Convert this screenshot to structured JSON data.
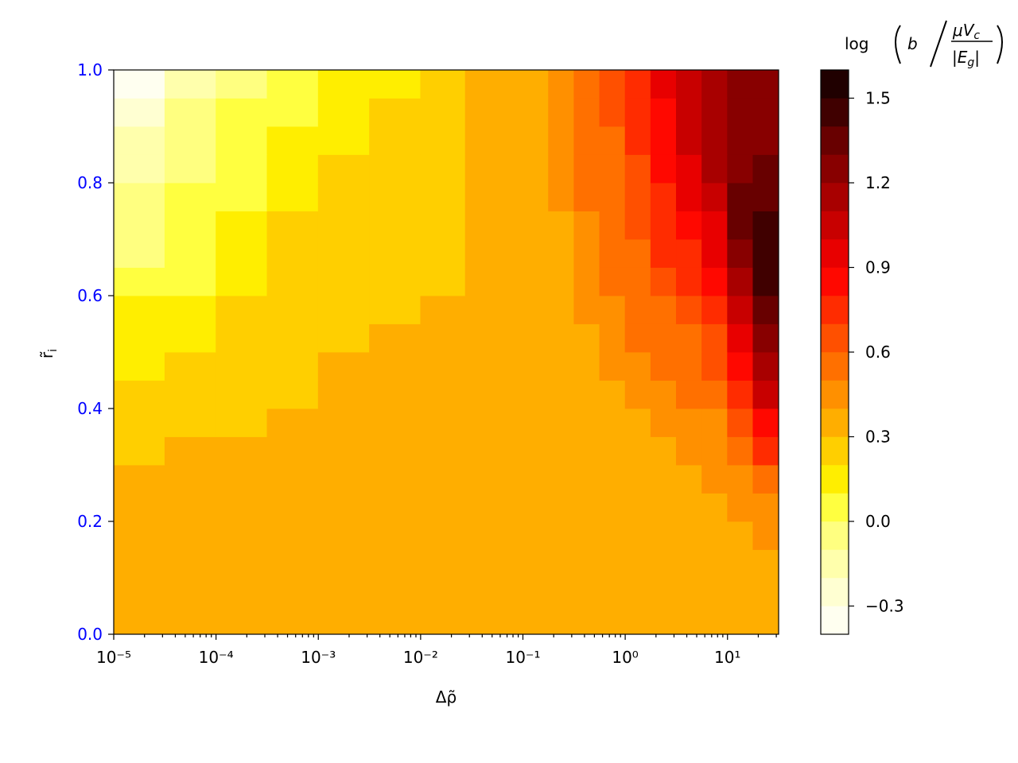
{
  "chart_data": {
    "type": "contourf",
    "xlabel": "Δρ̃",
    "ylabel": "r̃",
    "ylabel_sub": "i",
    "xscale": "log",
    "xlim": [
      1e-05,
      31.6
    ],
    "xticks": [
      {
        "value": 1e-05,
        "label": "10⁻⁵"
      },
      {
        "value": 0.0001,
        "label": "10⁻⁴"
      },
      {
        "value": 0.001,
        "label": "10⁻³"
      },
      {
        "value": 0.01,
        "label": "10⁻²"
      },
      {
        "value": 0.1,
        "label": "10⁻¹"
      },
      {
        "value": 1,
        "label": "10⁰"
      },
      {
        "value": 10,
        "label": "10¹"
      }
    ],
    "xminorticks": [
      2e-05,
      3e-05,
      4e-05,
      5e-05,
      6e-05,
      7e-05,
      8e-05,
      9e-05,
      0.0002,
      0.0003,
      0.0004,
      0.0005,
      0.0006,
      0.0007,
      0.0008,
      0.0009,
      0.002,
      0.003,
      0.004,
      0.005,
      0.006,
      0.007,
      0.008,
      0.009,
      0.02,
      0.03,
      0.04,
      0.05,
      0.06,
      0.07,
      0.08,
      0.09,
      0.2,
      0.3,
      0.4,
      0.5,
      0.6,
      0.7,
      0.8,
      0.9,
      2,
      3,
      4,
      5,
      6,
      7,
      8,
      9,
      20,
      30
    ],
    "ylim": [
      0,
      1
    ],
    "yticks": [
      {
        "value": 0,
        "label": "0.0"
      },
      0.2,
      0.4,
      0.6,
      0.8,
      {
        "value": 1,
        "label": "1.0"
      }
    ],
    "ytick_color": "#0000ff",
    "x": [
      1.778e-05,
      5.623e-05,
      0.0001778,
      0.0005623,
      0.001778,
      0.005623,
      0.01778,
      0.04217,
      0.07499,
      0.1334,
      0.2371,
      0.4217,
      0.7499,
      1.334,
      2.371,
      4.217,
      7.499,
      13.34,
      23.71
    ],
    "y": [
      0.025,
      0.075,
      0.125,
      0.175,
      0.225,
      0.275,
      0.325,
      0.375,
      0.425,
      0.475,
      0.525,
      0.575,
      0.625,
      0.675,
      0.725,
      0.775,
      0.825,
      0.875,
      0.925,
      0.975
    ],
    "z": [
      [
        0.35,
        0.35,
        0.35,
        0.35,
        0.35,
        0.35,
        0.35,
        0.35,
        0.35,
        0.35,
        0.35,
        0.35,
        0.35,
        0.35,
        0.35,
        0.35,
        0.35,
        0.35,
        0.35
      ],
      [
        0.35,
        0.35,
        0.35,
        0.35,
        0.35,
        0.35,
        0.35,
        0.35,
        0.35,
        0.35,
        0.35,
        0.35,
        0.35,
        0.35,
        0.35,
        0.35,
        0.35,
        0.35,
        0.35
      ],
      [
        0.35,
        0.35,
        0.35,
        0.35,
        0.35,
        0.35,
        0.35,
        0.35,
        0.35,
        0.35,
        0.35,
        0.35,
        0.35,
        0.35,
        0.35,
        0.35,
        0.35,
        0.35,
        0.35
      ],
      [
        0.35,
        0.35,
        0.35,
        0.35,
        0.35,
        0.35,
        0.35,
        0.35,
        0.35,
        0.35,
        0.35,
        0.35,
        0.35,
        0.35,
        0.35,
        0.35,
        0.35,
        0.35,
        0.45
      ],
      [
        0.35,
        0.35,
        0.35,
        0.35,
        0.35,
        0.35,
        0.35,
        0.35,
        0.35,
        0.35,
        0.35,
        0.35,
        0.35,
        0.35,
        0.35,
        0.35,
        0.35,
        0.45,
        0.45
      ],
      [
        0.35,
        0.35,
        0.35,
        0.35,
        0.35,
        0.35,
        0.35,
        0.35,
        0.35,
        0.35,
        0.35,
        0.35,
        0.35,
        0.35,
        0.35,
        0.35,
        0.45,
        0.45,
        0.55
      ],
      [
        0.25,
        0.35,
        0.35,
        0.35,
        0.35,
        0.35,
        0.35,
        0.35,
        0.35,
        0.35,
        0.35,
        0.35,
        0.35,
        0.35,
        0.35,
        0.45,
        0.45,
        0.55,
        0.75
      ],
      [
        0.25,
        0.25,
        0.25,
        0.35,
        0.35,
        0.35,
        0.35,
        0.35,
        0.35,
        0.35,
        0.35,
        0.35,
        0.35,
        0.35,
        0.45,
        0.45,
        0.45,
        0.65,
        0.85
      ],
      [
        0.25,
        0.25,
        0.25,
        0.25,
        0.35,
        0.35,
        0.35,
        0.35,
        0.35,
        0.35,
        0.35,
        0.35,
        0.35,
        0.45,
        0.45,
        0.55,
        0.55,
        0.75,
        1.05
      ],
      [
        0.15,
        0.25,
        0.25,
        0.25,
        0.35,
        0.35,
        0.35,
        0.35,
        0.35,
        0.35,
        0.35,
        0.35,
        0.45,
        0.45,
        0.55,
        0.55,
        0.65,
        0.85,
        1.15
      ],
      [
        0.15,
        0.15,
        0.25,
        0.25,
        0.25,
        0.35,
        0.35,
        0.35,
        0.35,
        0.35,
        0.35,
        0.35,
        0.45,
        0.55,
        0.55,
        0.55,
        0.65,
        0.95,
        1.25
      ],
      [
        0.15,
        0.15,
        0.25,
        0.25,
        0.25,
        0.25,
        0.35,
        0.35,
        0.35,
        0.35,
        0.35,
        0.45,
        0.45,
        0.55,
        0.55,
        0.65,
        0.75,
        1.05,
        1.35
      ],
      [
        0.05,
        0.05,
        0.15,
        0.25,
        0.25,
        0.25,
        0.25,
        0.35,
        0.35,
        0.35,
        0.35,
        0.45,
        0.55,
        0.55,
        0.65,
        0.75,
        0.85,
        1.15,
        1.45
      ],
      [
        -0.05,
        0.05,
        0.15,
        0.25,
        0.25,
        0.25,
        0.25,
        0.35,
        0.35,
        0.35,
        0.35,
        0.45,
        0.55,
        0.55,
        0.75,
        0.75,
        0.95,
        1.25,
        1.45
      ],
      [
        -0.05,
        0.05,
        0.15,
        0.25,
        0.25,
        0.25,
        0.25,
        0.35,
        0.35,
        0.35,
        0.35,
        0.45,
        0.55,
        0.65,
        0.75,
        0.85,
        0.95,
        1.35,
        1.45
      ],
      [
        -0.05,
        0.05,
        0.05,
        0.15,
        0.25,
        0.25,
        0.25,
        0.35,
        0.35,
        0.35,
        0.45,
        0.55,
        0.55,
        0.65,
        0.75,
        0.95,
        1.05,
        1.35,
        1.35
      ],
      [
        -0.15,
        -0.05,
        0.05,
        0.15,
        0.25,
        0.25,
        0.25,
        0.35,
        0.35,
        0.35,
        0.45,
        0.55,
        0.55,
        0.65,
        0.85,
        0.95,
        1.15,
        1.25,
        1.35
      ],
      [
        -0.15,
        -0.05,
        0.05,
        0.15,
        0.15,
        0.25,
        0.25,
        0.35,
        0.35,
        0.35,
        0.45,
        0.55,
        0.55,
        0.75,
        0.85,
        1.05,
        1.15,
        1.25,
        1.25
      ],
      [
        -0.25,
        -0.05,
        0.05,
        0.05,
        0.15,
        0.25,
        0.25,
        0.35,
        0.35,
        0.35,
        0.45,
        0.55,
        0.65,
        0.75,
        0.85,
        1.05,
        1.15,
        1.25,
        1.25
      ],
      [
        -0.35,
        -0.15,
        -0.05,
        0.05,
        0.15,
        0.15,
        0.25,
        0.35,
        0.35,
        0.35,
        0.45,
        0.55,
        0.65,
        0.75,
        0.95,
        1.05,
        1.15,
        1.25,
        1.25
      ]
    ],
    "levels": [
      -0.4,
      -0.3,
      -0.2,
      -0.1,
      0,
      0.1,
      0.2,
      0.3,
      0.4,
      0.5,
      0.6,
      0.7,
      0.8,
      0.9,
      1,
      1.1,
      1.2,
      1.3,
      1.4,
      1.5,
      1.6
    ],
    "colors": [
      "#fffff0",
      "#ffffd2",
      "#ffffac",
      "#ffff80",
      "#ffff40",
      "#ffee00",
      "#ffcf00",
      "#ffae00",
      "#ff9000",
      "#ff7000",
      "#ff5000",
      "#ff2c00",
      "#ff0800",
      "#e80000",
      "#c80000",
      "#a80000",
      "#880000",
      "#680000",
      "#400000",
      "#200000"
    ],
    "colorbar": {
      "label": {
        "func": "log",
        "var": "b",
        "num": "μV",
        "num_sub": "c",
        "den": "|E",
        "den_sub": "g",
        "den_end": "|"
      },
      "ticks": [
        {
          "value": -0.3,
          "label": "−0.3"
        },
        {
          "value": 0,
          "label": "0.0"
        },
        0.3,
        0.6,
        0.9,
        1.2,
        1.5
      ]
    }
  }
}
